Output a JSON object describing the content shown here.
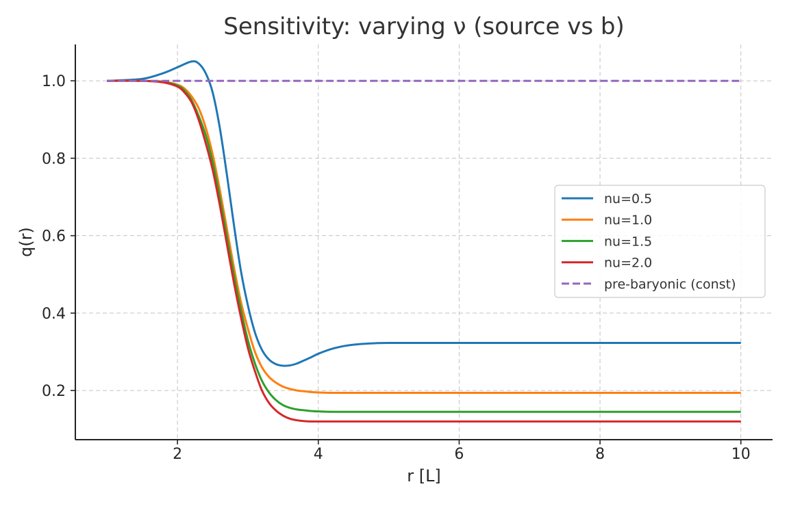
{
  "chart_data": {
    "type": "line",
    "title": "Sensitivity: varying ν (source vs b)",
    "xlabel": "r [L]",
    "ylabel": "q(r)",
    "xlim": [
      0.55,
      10.45
    ],
    "ylim": [
      0.073,
      1.094
    ],
    "xticks": [
      2,
      4,
      6,
      8,
      10
    ],
    "yticks": [
      0.2,
      0.4,
      0.6,
      0.8,
      1.0
    ],
    "xtick_labels": [
      "2",
      "4",
      "6",
      "8",
      "10"
    ],
    "ytick_labels": [
      "0.2",
      "0.4",
      "0.6",
      "0.8",
      "1.0"
    ],
    "grid": true,
    "legend_position": "center-right",
    "series": [
      {
        "name": "nu=0.5",
        "color": "#1f77b4",
        "dash": "solid",
        "x": [
          1.0,
          1.5,
          1.8,
          2.0,
          2.2,
          2.3,
          2.4,
          2.5,
          2.6,
          2.7,
          2.8,
          2.9,
          3.0,
          3.1,
          3.2,
          3.3,
          3.4,
          3.5,
          3.6,
          3.7,
          3.8,
          3.9,
          4.0,
          4.2,
          4.4,
          4.6,
          4.8,
          5.0,
          6.0,
          8.0,
          10.0
        ],
        "y": [
          1.0,
          1.005,
          1.02,
          1.035,
          1.05,
          1.045,
          1.02,
          0.97,
          0.88,
          0.76,
          0.63,
          0.51,
          0.42,
          0.35,
          0.305,
          0.28,
          0.268,
          0.264,
          0.265,
          0.27,
          0.278,
          0.286,
          0.295,
          0.308,
          0.316,
          0.32,
          0.322,
          0.323,
          0.323,
          0.323,
          0.323
        ]
      },
      {
        "name": "nu=1.0",
        "color": "#ff7f0e",
        "dash": "solid",
        "x": [
          1.0,
          1.5,
          1.8,
          2.0,
          2.1,
          2.2,
          2.3,
          2.4,
          2.5,
          2.6,
          2.7,
          2.8,
          2.9,
          3.0,
          3.1,
          3.2,
          3.3,
          3.4,
          3.5,
          3.6,
          3.7,
          3.8,
          3.9,
          4.0,
          4.2,
          4.5,
          5.0,
          6.0,
          8.0,
          10.0
        ],
        "y": [
          1.0,
          1.0,
          0.998,
          0.99,
          0.98,
          0.96,
          0.93,
          0.88,
          0.81,
          0.72,
          0.62,
          0.52,
          0.43,
          0.36,
          0.3,
          0.26,
          0.235,
          0.22,
          0.21,
          0.204,
          0.2,
          0.198,
          0.196,
          0.195,
          0.194,
          0.194,
          0.194,
          0.194,
          0.194,
          0.194
        ]
      },
      {
        "name": "nu=1.5",
        "color": "#2ca02c",
        "dash": "solid",
        "x": [
          1.0,
          1.5,
          1.8,
          2.0,
          2.1,
          2.2,
          2.3,
          2.4,
          2.5,
          2.6,
          2.7,
          2.8,
          2.9,
          3.0,
          3.1,
          3.2,
          3.3,
          3.4,
          3.5,
          3.6,
          3.7,
          3.8,
          3.9,
          4.0,
          4.2,
          4.5,
          5.0,
          6.0,
          8.0,
          10.0
        ],
        "y": [
          1.0,
          1.0,
          0.997,
          0.988,
          0.975,
          0.95,
          0.91,
          0.86,
          0.79,
          0.7,
          0.6,
          0.5,
          0.41,
          0.33,
          0.27,
          0.225,
          0.195,
          0.175,
          0.162,
          0.155,
          0.151,
          0.149,
          0.147,
          0.146,
          0.145,
          0.145,
          0.145,
          0.145,
          0.145,
          0.145
        ]
      },
      {
        "name": "nu=2.0",
        "color": "#d62728",
        "dash": "solid",
        "x": [
          1.0,
          1.5,
          1.8,
          2.0,
          2.1,
          2.2,
          2.3,
          2.4,
          2.5,
          2.6,
          2.7,
          2.8,
          2.9,
          3.0,
          3.1,
          3.2,
          3.3,
          3.4,
          3.5,
          3.6,
          3.7,
          3.8,
          3.9,
          4.0,
          4.2,
          4.5,
          5.0,
          6.0,
          8.0,
          10.0
        ],
        "y": [
          1.0,
          1.0,
          0.996,
          0.985,
          0.97,
          0.945,
          0.9,
          0.84,
          0.77,
          0.68,
          0.58,
          0.48,
          0.39,
          0.31,
          0.25,
          0.2,
          0.168,
          0.148,
          0.135,
          0.127,
          0.123,
          0.121,
          0.12,
          0.12,
          0.12,
          0.12,
          0.12,
          0.12,
          0.12,
          0.12
        ]
      },
      {
        "name": "pre-baryonic (const)",
        "color": "#9467bd",
        "dash": "dashed",
        "x": [
          1.0,
          10.0
        ],
        "y": [
          1.0,
          1.0
        ]
      }
    ]
  }
}
